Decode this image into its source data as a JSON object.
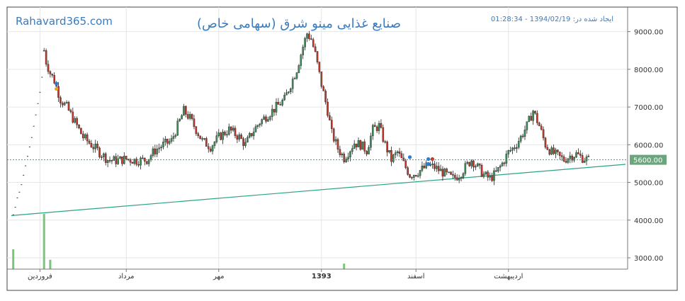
{
  "header": {
    "site": "Rahavard365.com",
    "title": "صنایع غذایی مینو شرق (سهامی خاص)",
    "created": "ایجاد شده در: 1394/02/19 - 01:28:34"
  },
  "colors": {
    "up": "#3f8f5b",
    "down": "#c0392b",
    "trend": "#2aa386",
    "last_price_bg": "#6aa57c",
    "volume": "#7cc47c",
    "site": "#3a7bbf",
    "title": "#3a7bbf"
  },
  "chart_data": {
    "type": "candlestick",
    "x_labels": [
      {
        "label": "فروردین",
        "t": 6,
        "bold": false
      },
      {
        "label": "مرداد",
        "t": 48,
        "bold": false
      },
      {
        "label": "مهر",
        "t": 93,
        "bold": false
      },
      {
        "label": "1393",
        "t": 143,
        "bold": true
      },
      {
        "label": "اسفند",
        "t": 189,
        "bold": false
      },
      {
        "label": "اردیبهشت",
        "t": 234,
        "bold": false
      }
    ],
    "x_range": [
      -10,
      292
    ],
    "y_ticks": [
      "3000.00",
      "4000.00",
      "5000.00",
      "6000.00",
      "7000.00",
      "8000.00",
      "9000.00"
    ],
    "y_tick_values": [
      3000,
      4000,
      5000,
      6000,
      7000,
      8000,
      9000
    ],
    "y_range": [
      2700,
      9650
    ],
    "last_price": 5600,
    "last_price_label": "5600.00",
    "trendline": [
      [
        -8,
        4120
      ],
      [
        291,
        5480
      ]
    ],
    "pre_listing_dots": [
      [
        -7,
        4150
      ],
      [
        -6,
        4350
      ],
      [
        -5,
        4600
      ],
      [
        -4,
        4750
      ],
      [
        -3,
        4950
      ],
      [
        -2,
        5200
      ],
      [
        -1,
        5450
      ],
      [
        0,
        5700
      ],
      [
        1,
        5950
      ],
      [
        2,
        6200
      ],
      [
        3,
        6500
      ],
      [
        4,
        6800
      ],
      [
        5,
        7100
      ],
      [
        6,
        7400
      ],
      [
        7,
        7800
      ]
    ],
    "markers": [
      {
        "t": 14,
        "price": 7620,
        "color": "#2b7bd8"
      },
      {
        "t": 14,
        "price": 7480,
        "color": "#e6a51e"
      },
      {
        "t": 186,
        "price": 5670,
        "color": "#2b7bd8"
      },
      {
        "t": 195,
        "price": 5620,
        "color": "#2b7bd8"
      },
      {
        "t": 195,
        "price": 5490,
        "color": "#2b7bd8"
      },
      {
        "t": 197,
        "price": 5620,
        "color": "#c0392b"
      }
    ],
    "volume": {
      "max": 100,
      "bars": [
        {
          "t": -7,
          "v": 36
        },
        {
          "t": 8,
          "v": 100
        },
        {
          "t": 11,
          "v": 17
        },
        {
          "t": 154,
          "v": 10
        }
      ]
    },
    "anchors": [
      [
        8,
        8500
      ],
      [
        9,
        8200
      ],
      [
        11,
        7900
      ],
      [
        13,
        7700
      ],
      [
        16,
        7200
      ],
      [
        19,
        7000
      ],
      [
        23,
        6600
      ],
      [
        27,
        6200
      ],
      [
        31,
        6000
      ],
      [
        35,
        5800
      ],
      [
        39,
        5600
      ],
      [
        43,
        5580
      ],
      [
        48,
        5620
      ],
      [
        53,
        5580
      ],
      [
        58,
        5600
      ],
      [
        62,
        5850
      ],
      [
        66,
        6000
      ],
      [
        70,
        6100
      ],
      [
        73,
        6500
      ],
      [
        76,
        6900
      ],
      [
        79,
        6700
      ],
      [
        82,
        6400
      ],
      [
        85,
        6100
      ],
      [
        89,
        5950
      ],
      [
        93,
        6200
      ],
      [
        98,
        6400
      ],
      [
        103,
        6200
      ],
      [
        106,
        6000
      ],
      [
        109,
        6300
      ],
      [
        113,
        6600
      ],
      [
        117,
        6800
      ],
      [
        121,
        7000
      ],
      [
        125,
        7200
      ],
      [
        128,
        7600
      ],
      [
        131,
        8000
      ],
      [
        134,
        8600
      ],
      [
        136,
        8950
      ],
      [
        138,
        8800
      ],
      [
        140,
        8400
      ],
      [
        143,
        7600
      ],
      [
        146,
        6900
      ],
      [
        148,
        6300
      ],
      [
        151,
        5900
      ],
      [
        154,
        5650
      ],
      [
        156,
        5800
      ],
      [
        159,
        6050
      ],
      [
        162,
        6000
      ],
      [
        165,
        5850
      ],
      [
        168,
        6400
      ],
      [
        171,
        6500
      ],
      [
        174,
        6000
      ],
      [
        177,
        5600
      ],
      [
        180,
        5800
      ],
      [
        183,
        5500
      ],
      [
        186,
        5200
      ],
      [
        189,
        5250
      ],
      [
        192,
        5350
      ],
      [
        195,
        5450
      ],
      [
        198,
        5400
      ],
      [
        201,
        5300
      ],
      [
        204,
        5200
      ],
      [
        207,
        5100
      ],
      [
        210,
        5200
      ],
      [
        213,
        5400
      ],
      [
        216,
        5600
      ],
      [
        219,
        5400
      ],
      [
        222,
        5200
      ],
      [
        225,
        5100
      ],
      [
        228,
        5250
      ],
      [
        231,
        5500
      ],
      [
        234,
        5800
      ],
      [
        237,
        5950
      ],
      [
        240,
        6200
      ],
      [
        243,
        6500
      ],
      [
        246,
        6900
      ],
      [
        249,
        6500
      ],
      [
        252,
        6000
      ],
      [
        255,
        5800
      ],
      [
        258,
        5700
      ],
      [
        261,
        5600
      ],
      [
        264,
        5700
      ],
      [
        267,
        5750
      ],
      [
        270,
        5650
      ],
      [
        273,
        5600
      ]
    ]
  }
}
